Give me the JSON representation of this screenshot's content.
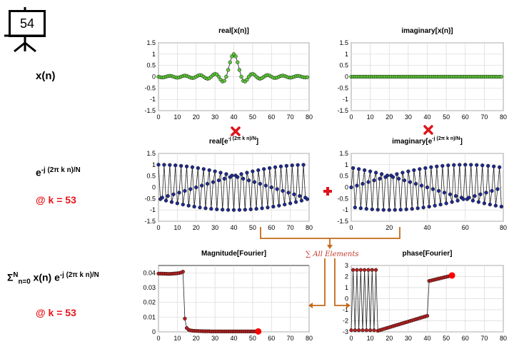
{
  "slide_number": "54",
  "labels": {
    "xn": "x(n)",
    "kernel_base": "e",
    "kernel_exp": "-j (2π k n)/N",
    "k_value": "@ k = 53",
    "sum_sigma": "Σ",
    "sum_sup": "N",
    "sum_sub": "n=0",
    "sum_body": " x(n) e",
    "sum_exp": "-j (2π k n)/N",
    "k_value_2": "@ k = 53",
    "all_elements": "∑ All Elements"
  },
  "colors": {
    "green_marker": "#5fc93a",
    "blue_marker": "#1f2a8f",
    "red_marker": "#b52020",
    "highlight_dot": "#ff0000",
    "orange_arrow": "#c46a1a",
    "red_text": "#e8141b",
    "multiply_icon": "#e0141b",
    "plus_icon": "#e0141b"
  },
  "icons": [
    "presentation-board-icon",
    "multiply-icon",
    "plus-icon"
  ],
  "chart_data": [
    {
      "id": "real-xn",
      "type": "line",
      "title": "real[x(n)]",
      "xlim": [
        0,
        80
      ],
      "ylim": [
        -1.5,
        1.5
      ],
      "xticks": [
        "0",
        "10",
        "20",
        "30",
        "40",
        "50",
        "60",
        "70",
        "80"
      ],
      "yticks": [
        "1.5",
        "1",
        "0.5",
        "0",
        "-0.5",
        "-1",
        "-1.5"
      ],
      "grid": true,
      "marker": "green",
      "series": [
        {
          "x": "n = 0..79",
          "values": "sinc(0.25*(n-40))"
        }
      ]
    },
    {
      "id": "imag-xn",
      "type": "line",
      "title": "imaginary[x(n)]",
      "xlim": [
        0,
        80
      ],
      "ylim": [
        -1.5,
        1.5
      ],
      "xticks": [
        "0",
        "10",
        "20",
        "30",
        "40",
        "50",
        "60",
        "70",
        "80"
      ],
      "yticks": [
        "1.5",
        "1",
        "0.5",
        "0",
        "-0.5",
        "-1",
        "-1.5"
      ],
      "grid": true,
      "marker": "green",
      "series": [
        {
          "x": "n = 0..79",
          "values": "0"
        }
      ]
    },
    {
      "id": "real-kernel",
      "type": "line",
      "title": "real[e",
      "title_sup": "-j (2π k n)/N",
      "title_end": "]",
      "xlim": [
        0,
        80
      ],
      "ylim": [
        -1.5,
        1.5
      ],
      "xticks": [
        "0",
        "10",
        "20",
        "30",
        "40",
        "50",
        "60",
        "70",
        "80"
      ],
      "yticks": [
        "1.5",
        "1",
        "0.5",
        "0",
        "-0.5",
        "-1",
        "-1.5"
      ],
      "grid": true,
      "marker": "blue",
      "series": [
        {
          "x": "n = 0..79",
          "values": "cos(2π·53·n/80)"
        }
      ]
    },
    {
      "id": "imag-kernel",
      "type": "line",
      "title": "imaginary[e",
      "title_sup": "-j (2π k n)/N",
      "title_end": "]",
      "xlim": [
        0,
        80
      ],
      "ylim": [
        -1.5,
        1.5
      ],
      "xticks": [
        "0",
        "20",
        "40",
        "60",
        "80"
      ],
      "yticks": [
        "1.5",
        "1",
        "0.5",
        "0",
        "-0.5",
        "-1",
        "-1.5"
      ],
      "grid": true,
      "marker": "blue",
      "series": [
        {
          "x": "n = 0..79",
          "values": "-sin(2π·53·n/80)"
        }
      ]
    },
    {
      "id": "magnitude",
      "type": "line",
      "title": "Magnitude[Fourier]",
      "xlim": [
        0,
        80
      ],
      "ylim": [
        0,
        0.045
      ],
      "xticks": [
        "0",
        "10",
        "20",
        "30",
        "40",
        "50",
        "60",
        "70",
        "80"
      ],
      "yticks": [
        "0.04",
        "0.03",
        "0.02",
        "0.01",
        "0"
      ],
      "grid": true,
      "marker": "red",
      "series": [
        {
          "x": [
            0,
            1,
            2,
            3,
            4,
            5,
            6,
            7,
            8,
            9,
            10,
            11,
            12,
            13,
            14,
            15,
            16,
            17,
            18,
            19,
            20,
            21,
            22,
            23,
            24,
            25,
            26,
            27,
            28,
            29,
            30,
            31,
            32,
            33,
            34,
            35,
            36,
            37,
            38,
            39,
            40,
            41,
            42,
            43,
            44,
            45,
            46,
            47,
            48,
            49,
            50,
            51,
            52,
            53
          ],
          "values": [
            0.0395,
            0.0395,
            0.0395,
            0.0394,
            0.0394,
            0.0393,
            0.0393,
            0.0394,
            0.0395,
            0.0396,
            0.0397,
            0.0399,
            0.0402,
            0.0408,
            0.009,
            0.0026,
            0.0014,
            0.001,
            0.0008,
            0.0007,
            0.0006,
            0.0006,
            0.0005,
            0.0005,
            0.0004,
            0.0004,
            0.0004,
            0.0004,
            0.0003,
            0.0003,
            0.0003,
            0.0003,
            0.0003,
            0.0003,
            0.0003,
            0.0003,
            0.0003,
            0.0003,
            0.0003,
            0.0003,
            0.0003,
            0.0003,
            0.0003,
            0.0003,
            0.0003,
            0.0003,
            0.0003,
            0.0003,
            0.0003,
            0.0003,
            0.0003,
            0.0003,
            0.0003,
            0.0003
          ]
        }
      ],
      "highlight_x": 53
    },
    {
      "id": "phase",
      "type": "line",
      "title": "phase[Fourier]",
      "xlim": [
        0,
        80
      ],
      "ylim": [
        -3,
        3
      ],
      "xticks": [
        "0",
        "10",
        "20",
        "30",
        "40",
        "50",
        "60",
        "70",
        "80"
      ],
      "yticks": [
        "3",
        "2",
        "1",
        "0",
        "-1",
        "-2",
        "-3"
      ],
      "grid": true,
      "marker": "red",
      "series": [
        {
          "x": "k = 0..53",
          "values": "alternating ±2.8 for k<14, linear -2.9→-1.55 for 14..40, linear 1.6→2.1 for 41..53"
        }
      ],
      "highlight_x": 53
    }
  ]
}
